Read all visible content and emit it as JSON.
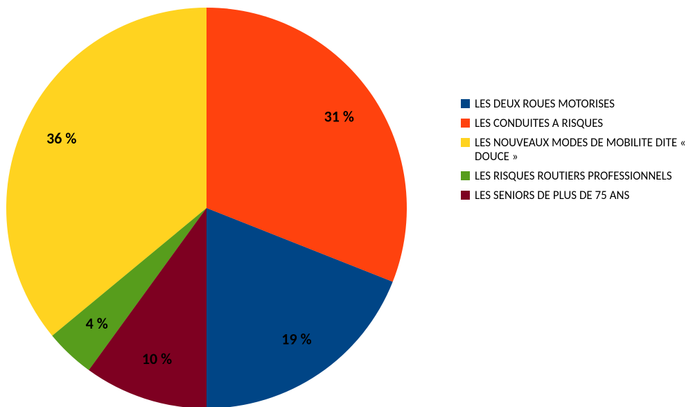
{
  "chart_data": {
    "type": "pie",
    "categories": [
      "LES DEUX ROUES MOTORISES",
      "LES CONDUITES A RISQUES",
      "LES NOUVEAUX MODES DE MOBILITE DITE « DOUCE »",
      "LES RISQUES ROUTIERS PROFESSIONNELS",
      "LES SENIORS DE PLUS DE 75 ANS"
    ],
    "values": [
      19,
      31,
      36,
      4,
      10
    ],
    "value_labels": [
      "19 %",
      "31 %",
      "36 %",
      "4 %",
      "10 %"
    ],
    "colors": [
      "#004586",
      "#ff420e",
      "#ffd320",
      "#579d1c",
      "#7e0021"
    ],
    "legend": "right"
  }
}
